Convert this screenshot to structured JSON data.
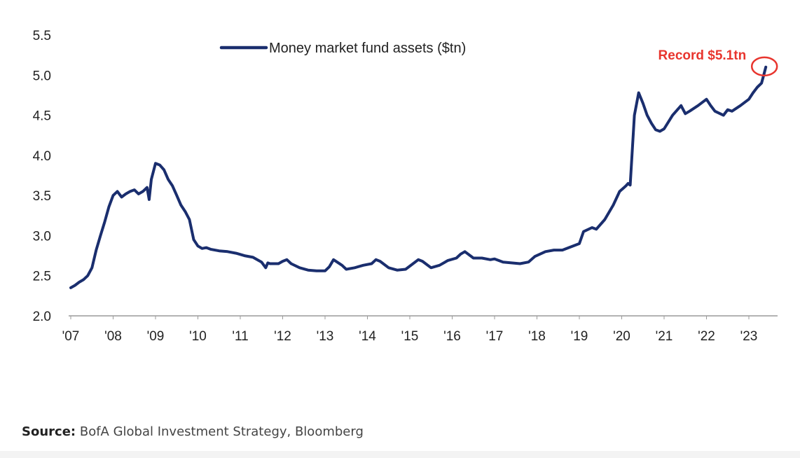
{
  "chart_data": {
    "type": "line",
    "title": "",
    "xlabel": "",
    "ylabel": "",
    "ylim": [
      2.0,
      5.5
    ],
    "yticks": [
      "2.0",
      "2.5",
      "3.0",
      "3.5",
      "4.0",
      "4.5",
      "5.0",
      "5.5"
    ],
    "xlim": [
      2007.0,
      2024.0
    ],
    "xticks": [
      "'07",
      "'08",
      "'09",
      "'10",
      "'11",
      "'12",
      "'13",
      "'14",
      "'15",
      "'16",
      "'17",
      "'18",
      "'19",
      "'20",
      "'21",
      "'22",
      "'23"
    ],
    "grid": false,
    "legend_position": "top-center",
    "series": [
      {
        "name": "Money market fund assets ($tn)",
        "color": "#1a2e6e",
        "x": [
          2007.0,
          2007.1,
          2007.2,
          2007.3,
          2007.4,
          2007.5,
          2007.6,
          2007.7,
          2007.8,
          2007.9,
          2008.0,
          2008.1,
          2008.2,
          2008.3,
          2008.4,
          2008.5,
          2008.6,
          2008.7,
          2008.8,
          2008.85,
          2008.9,
          2009.0,
          2009.1,
          2009.2,
          2009.3,
          2009.4,
          2009.5,
          2009.6,
          2009.7,
          2009.8,
          2009.9,
          2010.0,
          2010.1,
          2010.2,
          2010.3,
          2010.4,
          2010.5,
          2010.7,
          2010.9,
          2011.1,
          2011.3,
          2011.5,
          2011.6,
          2011.65,
          2011.7,
          2011.9,
          2012.0,
          2012.1,
          2012.2,
          2012.4,
          2012.6,
          2012.8,
          2013.0,
          2013.1,
          2013.2,
          2013.4,
          2013.5,
          2013.7,
          2013.9,
          2014.1,
          2014.2,
          2014.3,
          2014.5,
          2014.7,
          2014.9,
          2015.0,
          2015.2,
          2015.3,
          2015.5,
          2015.7,
          2015.9,
          2016.1,
          2016.2,
          2016.3,
          2016.5,
          2016.7,
          2016.9,
          2017.0,
          2017.2,
          2017.4,
          2017.6,
          2017.8,
          2017.95,
          2018.2,
          2018.4,
          2018.6,
          2018.8,
          2019.0,
          2019.1,
          2019.3,
          2019.4,
          2019.6,
          2019.8,
          2019.95,
          2020.1,
          2020.15,
          2020.2,
          2020.3,
          2020.4,
          2020.5,
          2020.6,
          2020.7,
          2020.8,
          2020.9,
          2021.0,
          2021.2,
          2021.4,
          2021.5,
          2021.6,
          2021.8,
          2022.0,
          2022.1,
          2022.2,
          2022.4,
          2022.5,
          2022.6,
          2022.8,
          2023.0,
          2023.1,
          2023.2,
          2023.3,
          2023.35,
          2023.4
        ],
        "values": [
          2.35,
          2.38,
          2.42,
          2.45,
          2.5,
          2.6,
          2.82,
          3.0,
          3.17,
          3.36,
          3.5,
          3.55,
          3.48,
          3.52,
          3.55,
          3.57,
          3.52,
          3.55,
          3.6,
          3.45,
          3.7,
          3.9,
          3.88,
          3.82,
          3.7,
          3.62,
          3.5,
          3.38,
          3.3,
          3.2,
          2.95,
          2.87,
          2.84,
          2.85,
          2.83,
          2.82,
          2.81,
          2.8,
          2.78,
          2.75,
          2.73,
          2.67,
          2.6,
          2.66,
          2.65,
          2.65,
          2.68,
          2.7,
          2.65,
          2.6,
          2.57,
          2.56,
          2.56,
          2.61,
          2.7,
          2.63,
          2.58,
          2.6,
          2.63,
          2.65,
          2.7,
          2.68,
          2.6,
          2.57,
          2.58,
          2.62,
          2.7,
          2.68,
          2.6,
          2.63,
          2.69,
          2.72,
          2.77,
          2.8,
          2.72,
          2.72,
          2.7,
          2.71,
          2.67,
          2.66,
          2.65,
          2.67,
          2.74,
          2.8,
          2.82,
          2.82,
          2.86,
          2.9,
          3.05,
          3.1,
          3.08,
          3.2,
          3.38,
          3.55,
          3.62,
          3.65,
          3.63,
          4.5,
          4.78,
          4.65,
          4.5,
          4.4,
          4.32,
          4.3,
          4.33,
          4.5,
          4.62,
          4.52,
          4.55,
          4.62,
          4.7,
          4.62,
          4.55,
          4.5,
          4.57,
          4.55,
          4.62,
          4.7,
          4.78,
          4.85,
          4.9,
          5.0,
          5.1
        ]
      }
    ],
    "annotations": [
      {
        "text": "Record $5.1tn",
        "x": 2023.4,
        "y": 5.1,
        "color": "#e8352e"
      }
    ]
  },
  "source": {
    "label": "Source:",
    "text": "BofA Global Investment Strategy, Bloomberg"
  }
}
